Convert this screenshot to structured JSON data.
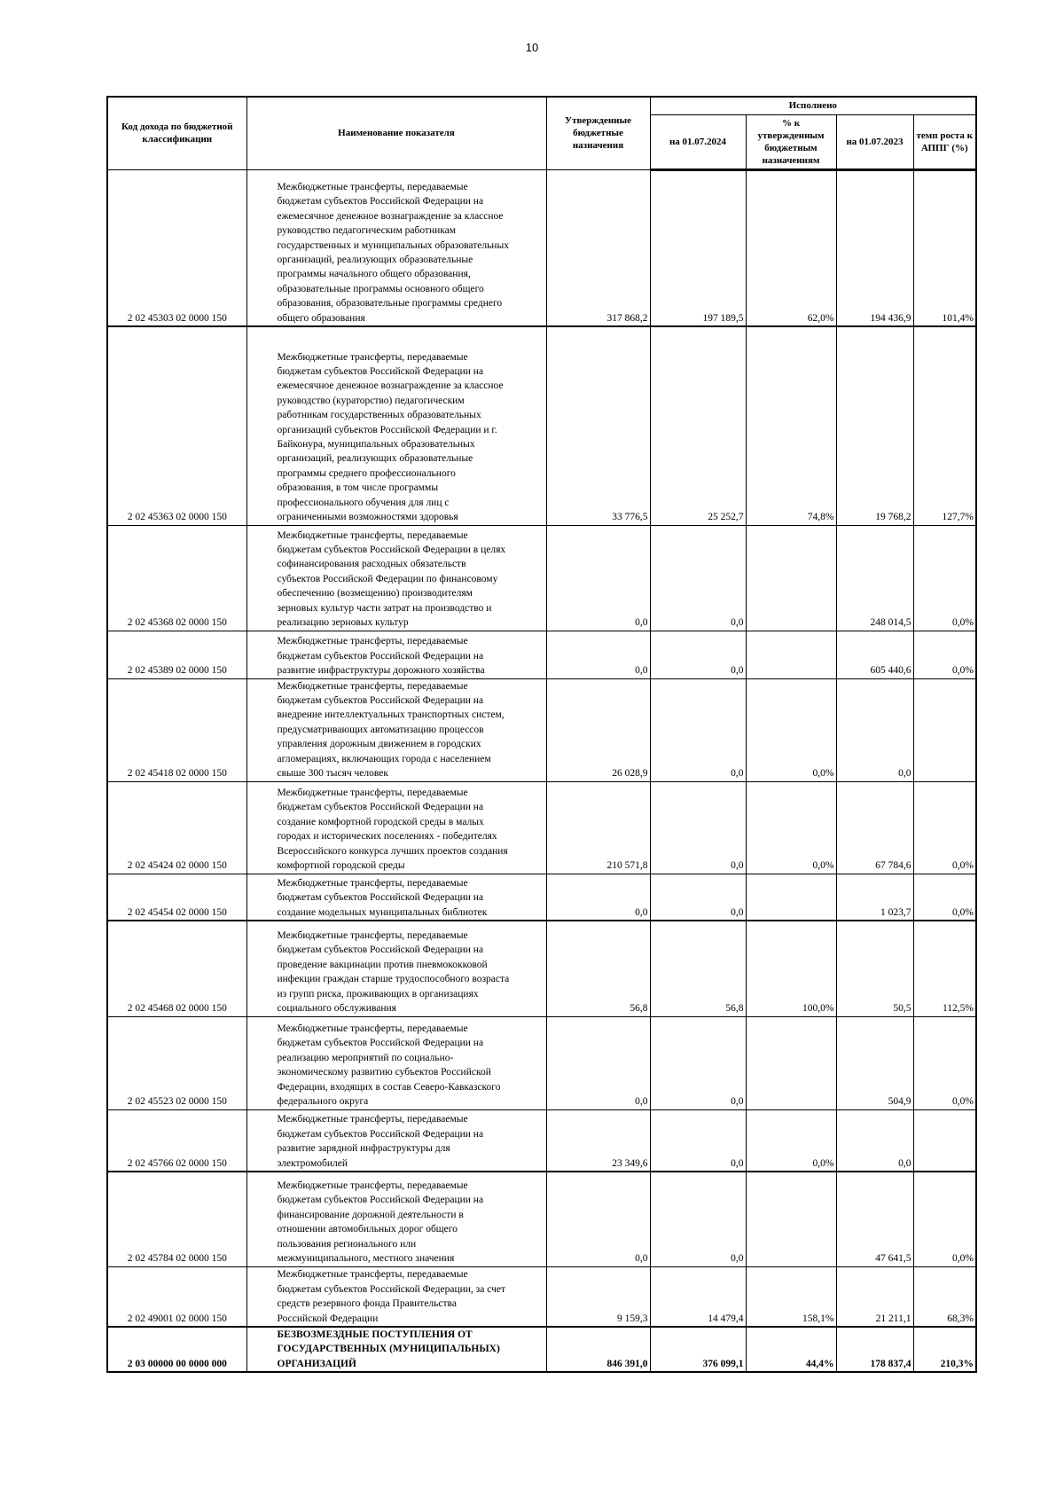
{
  "page_number": "10",
  "header": {
    "code": "Код дохода по бюджетной классификации",
    "name": "Наименование показателя",
    "approved": "Утвержденные бюджетные назначения",
    "executed": "Исполнено",
    "on_2024": "на 01.07.2024",
    "pct_approved": "% к утвержденным бюджетным назначениям",
    "on_2023": "на 01.07.2023",
    "growth": "темп роста к АППГ (%)"
  },
  "rows": [
    {
      "code": "2 02 45303 02 0000 150",
      "name": "Межбюджетные трансферты, передаваемые\nбюджетам субъектов Российской Федерации на\nежемесячное денежное вознаграждение за классное\nруководство педагогическим работникам\nгосударственных и муниципальных образовательных\nорганизаций, реализующих образовательные\nпрограммы начального общего образования,\nобразовательные программы основного общего\nобразования, образовательные программы среднего\nобщего образования",
      "approved": "317 868,2",
      "on_2024": "197 189,5",
      "pct": "62,0%",
      "on_2023": "194 436,9",
      "growth": "101,4%"
    },
    {
      "code": "2 02 45363 02 0000 150",
      "name": "Межбюджетные трансферты, передаваемые\nбюджетам субъектов Российской Федерации на\nежемесячное денежное вознаграждение за классное\nруководство (кураторство) педагогическим\nработникам государственных образовательных\nорганизаций субъектов Российской Федерации и г.\nБайконура, муниципальных образовательных\nорганизаций, реализующих образовательные\nпрограммы среднего профессионального\nобразования, в том числе программы\nпрофессионального обучения для лиц с\nограниченными возможностями здоровья",
      "approved": "33 776,5",
      "on_2024": "25 252,7",
      "pct": "74,8%",
      "on_2023": "19 768,2",
      "growth": "127,7%"
    },
    {
      "code": "2 02 45368 02 0000 150",
      "name": "Межбюджетные трансферты, передаваемые\nбюджетам субъектов Российской Федерации в целях\nсофинансирования расходных обязательств\nсубъектов Российской Федерации по финансовому\nобеспечению (возмещению) производителям\nзерновых культур части затрат на производство и\nреализацию зерновых культур",
      "approved": "0,0",
      "on_2024": "0,0",
      "pct": "",
      "on_2023": "248 014,5",
      "growth": "0,0%"
    },
    {
      "code": "2 02 45389 02 0000 150",
      "name": "Межбюджетные трансферты, передаваемые\nбюджетам субъектов Российской Федерации на\nразвитие инфраструктуры дорожного хозяйства",
      "approved": "0,0",
      "on_2024": "0,0",
      "pct": "",
      "on_2023": "605 440,6",
      "growth": "0,0%"
    },
    {
      "code": "2 02 45418 02 0000 150",
      "name": "Межбюджетные трансферты, передаваемые\nбюджетам субъектов Российской Федерации на\nвнедрение интеллектуальных транспортных систем,\nпредусматривающих автоматизацию процессов\nуправления дорожным движением в городских\nагломерациях, включающих города с населением\nсвыше 300 тысяч человек",
      "approved": "26 028,9",
      "on_2024": "0,0",
      "pct": "0,0%",
      "on_2023": "0,0",
      "growth": ""
    },
    {
      "code": "2 02 45424 02 0000 150",
      "name": "Межбюджетные трансферты, передаваемые\nбюджетам субъектов Российской Федерации на\nсоздание комфортной городской среды в малых\nгородах и исторических поселениях - победителях\nВсероссийского конкурса лучших проектов создания\nкомфортной городской среды",
      "approved": "210 571,8",
      "on_2024": "0,0",
      "pct": "0,0%",
      "on_2023": "67 784,6",
      "growth": "0,0%"
    },
    {
      "code": "2 02 45454 02 0000 150",
      "name": "Межбюджетные трансферты, передаваемые\nбюджетам субъектов Российской Федерации на\nсоздание модельных муниципальных библиотек",
      "approved": "0,0",
      "on_2024": "0,0",
      "pct": "",
      "on_2023": "1 023,7",
      "growth": "0,0%"
    },
    {
      "code": "2 02 45468 02 0000 150",
      "name": "Межбюджетные трансферты, передаваемые\nбюджетам субъектов Российской Федерации на\nпроведение вакцинации против пневмококковой\nинфекции граждан старше трудоспособного возраста\nиз групп риска, проживающих в организациях\nсоциального обслуживания",
      "approved": "56,8",
      "on_2024": "56,8",
      "pct": "100,0%",
      "on_2023": "50,5",
      "growth": "112,5%"
    },
    {
      "code": "2 02 45523 02 0000 150",
      "name": "Межбюджетные трансферты, передаваемые\nбюджетам субъектов Российской Федерации на\nреализацию мероприятий по социально-\nэкономическому развитию субъектов Российской\nФедерации, входящих в состав Северо-Кавказского\nфедерального округа",
      "approved": "0,0",
      "on_2024": "0,0",
      "pct": "",
      "on_2023": "504,9",
      "growth": "0,0%"
    },
    {
      "code": "2 02 45766 02 0000 150",
      "name": "Межбюджетные трансферты, передаваемые\nбюджетам субъектов Российской Федерации на\nразвитие зарядной инфраструктуры для\nэлектромобилей",
      "approved": "23 349,6",
      "on_2024": "0,0",
      "pct": "0,0%",
      "on_2023": "0,0",
      "growth": ""
    },
    {
      "code": "2 02 45784 02 0000 150",
      "name": "Межбюджетные трансферты, передаваемые\nбюджетам субъектов Российской Федерации на\nфинансирование дорожной деятельности в\nотношении автомобильных дорог общего\nпользования регионального или\nмежмуниципального, местного значения",
      "approved": "0,0",
      "on_2024": "0,0",
      "pct": "",
      "on_2023": "47 641,5",
      "growth": "0,0%"
    },
    {
      "code": "2 02 49001 02 0000 150",
      "name": "Межбюджетные трансферты, передаваемые\nбюджетам субъектов Российской Федерации, за счет\nсредств резервного фонда Правительства\nРоссийской Федерации",
      "approved": "9 159,3",
      "on_2024": "14 479,4",
      "pct": "158,1%",
      "on_2023": "21 211,1",
      "growth": "68,3%"
    },
    {
      "code": "2 03 00000 00 0000 000",
      "name": "БЕЗВОЗМЕЗДНЫЕ ПОСТУПЛЕНИЯ ОТ\nГОСУДАРСТВЕННЫХ (МУНИЦИПАЛЬНЫХ)\nОРГАНИЗАЦИЙ",
      "approved": "846 391,0",
      "on_2024": "376 099,1",
      "pct": "44,4%",
      "on_2023": "178 837,4",
      "growth": "210,3%",
      "total": true
    }
  ]
}
